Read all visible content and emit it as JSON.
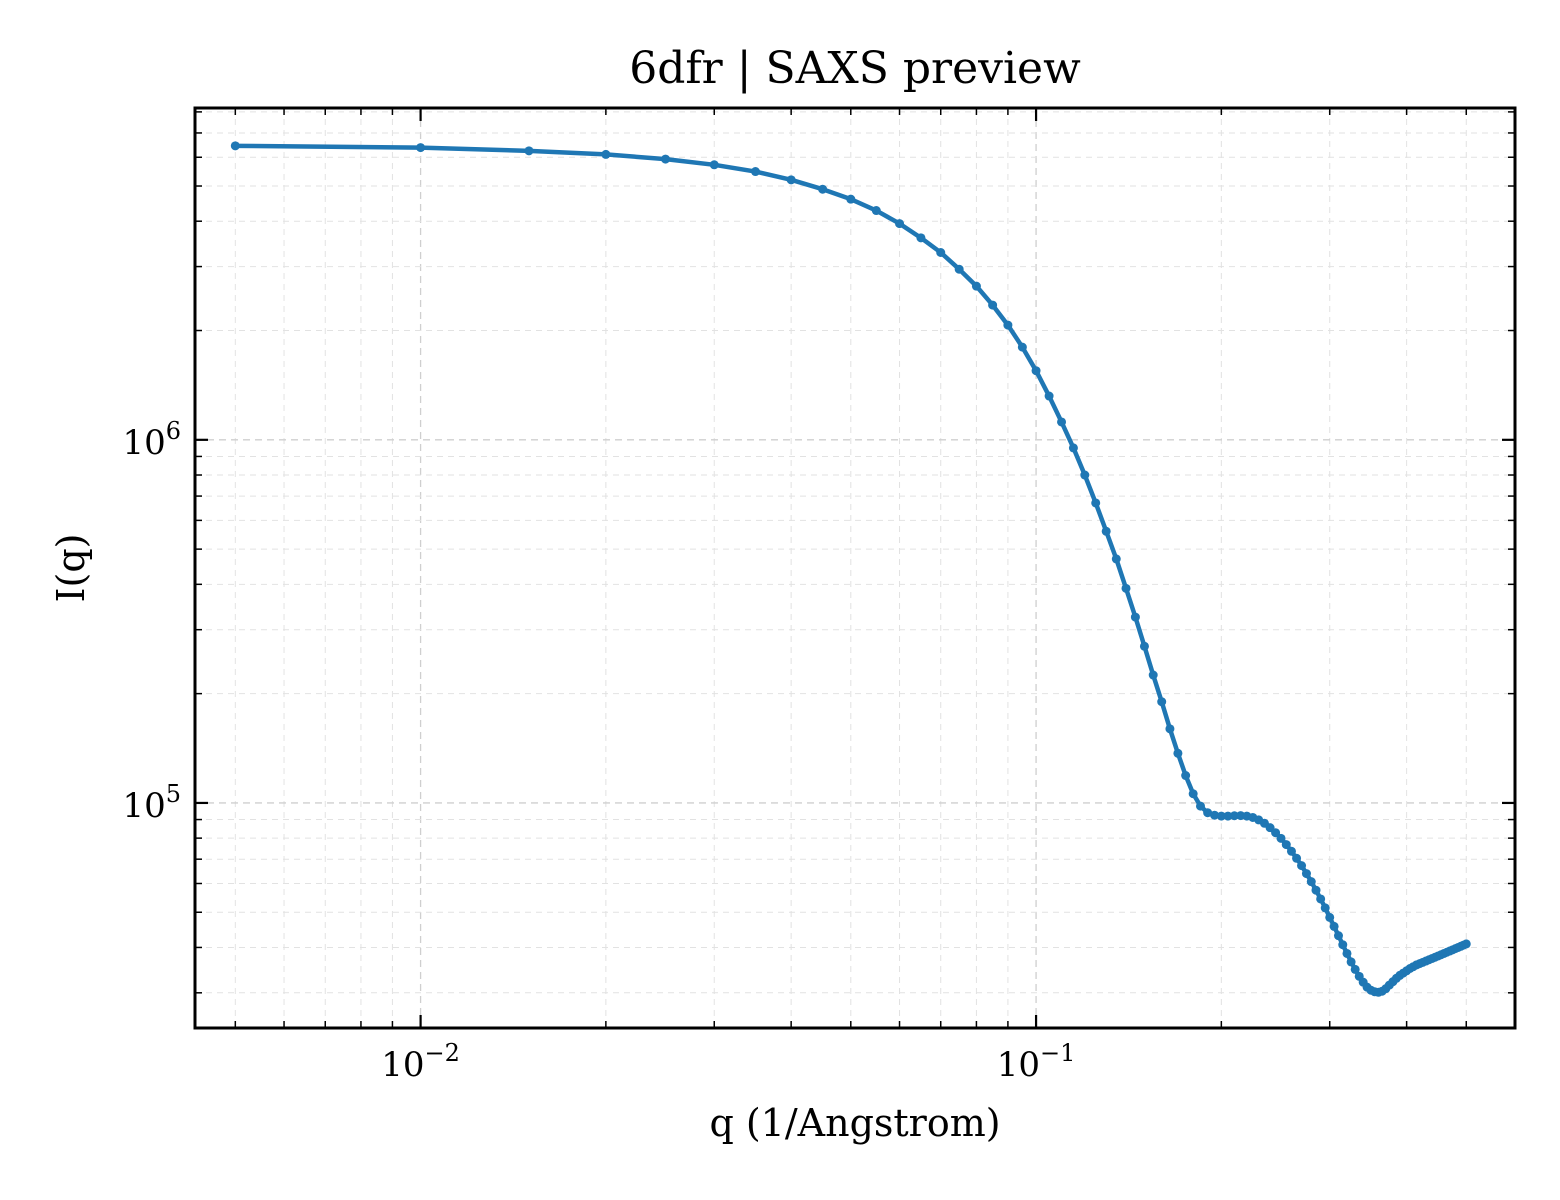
{
  "chart_data": {
    "type": "line",
    "title": "6dfr | SAXS preview",
    "xlabel": "q (1/Angstrom)",
    "ylabel": "I(q)",
    "xscale": "log",
    "yscale": "log",
    "xlim": [
      0.0043,
      0.6
    ],
    "ylim": [
      24000,
      8200000
    ],
    "grid": true,
    "line_color": "#1f77b4",
    "marker": "dot",
    "x_ticks": [
      {
        "base": "10",
        "exp": "−2",
        "value": 0.01
      },
      {
        "base": "10",
        "exp": "−1",
        "value": 0.1
      }
    ],
    "y_ticks": [
      {
        "base": "10",
        "exp": "5",
        "value": 100000
      },
      {
        "base": "10",
        "exp": "6",
        "value": 1000000
      }
    ],
    "series": [
      {
        "x": [
          0.005,
          0.01,
          0.015,
          0.02,
          0.025,
          0.03,
          0.035,
          0.04,
          0.045,
          0.05,
          0.055,
          0.06,
          0.065,
          0.07,
          0.075,
          0.08,
          0.085,
          0.09,
          0.095,
          0.1,
          0.105,
          0.11,
          0.115,
          0.12,
          0.125,
          0.13,
          0.135,
          0.14,
          0.145,
          0.15,
          0.155,
          0.16,
          0.165,
          0.17,
          0.175,
          0.18,
          0.185,
          0.19,
          0.195,
          0.2,
          0.205,
          0.21,
          0.215,
          0.22,
          0.225,
          0.23,
          0.235,
          0.24,
          0.245,
          0.25,
          0.255,
          0.26,
          0.265,
          0.27,
          0.275,
          0.28,
          0.285,
          0.29,
          0.295,
          0.3,
          0.305,
          0.31,
          0.315,
          0.32,
          0.325,
          0.33,
          0.335,
          0.34,
          0.345,
          0.35,
          0.355,
          0.36,
          0.365,
          0.37,
          0.375,
          0.38,
          0.385,
          0.39,
          0.395,
          0.4,
          0.405,
          0.41,
          0.415,
          0.42,
          0.425,
          0.43,
          0.435,
          0.44,
          0.445,
          0.45,
          0.455,
          0.46,
          0.465,
          0.47,
          0.475,
          0.48,
          0.485,
          0.49,
          0.495,
          0.5
        ],
        "y": [
          6450000,
          6380000,
          6250000,
          6110000,
          5930000,
          5720000,
          5480000,
          5200000,
          4900000,
          4600000,
          4280000,
          3940000,
          3600000,
          3280000,
          2950000,
          2650000,
          2350000,
          2070000,
          1800000,
          1550000,
          1320000,
          1120000,
          950000,
          800000,
          670000,
          560000,
          470000,
          390000,
          325000,
          270000,
          225000,
          190000,
          160000,
          137000,
          119000,
          106000,
          98000,
          94000,
          92500,
          92000,
          92000,
          92200,
          92300,
          92000,
          91200,
          89800,
          87900,
          85500,
          82800,
          79900,
          76800,
          73600,
          70400,
          67200,
          63900,
          60700,
          57500,
          54400,
          51400,
          48400,
          45700,
          43100,
          40700,
          38500,
          36500,
          34800,
          33300,
          32100,
          31100,
          30500,
          30200,
          30100,
          30300,
          30800,
          31500,
          32200,
          32900,
          33500,
          34000,
          34500,
          35000,
          35400,
          35800,
          36100,
          36400,
          36700,
          37000,
          37300,
          37600,
          37900,
          38200,
          38500,
          38800,
          39100,
          39400,
          39700,
          40000,
          40300,
          40600,
          40900
        ]
      }
    ]
  }
}
